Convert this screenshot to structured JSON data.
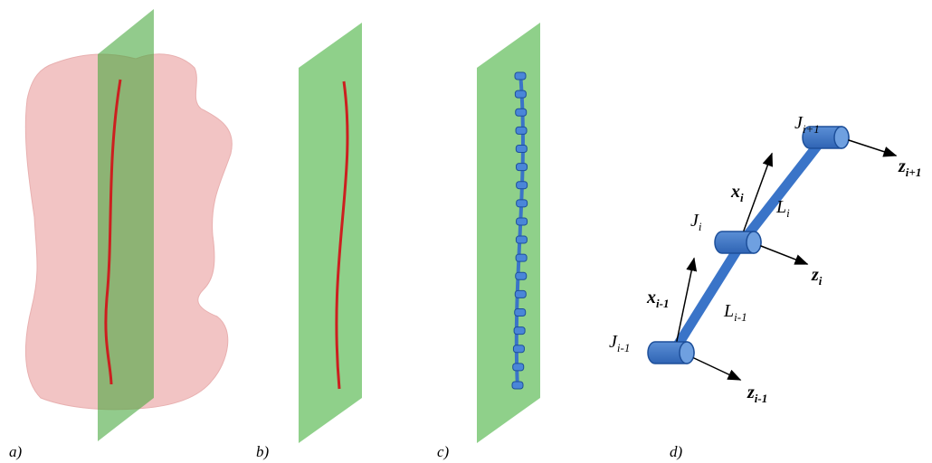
{
  "panels": {
    "a": "a)",
    "b": "b)",
    "c": "c)",
    "d": "d)"
  },
  "labels": [
    {
      "base": "J",
      "sub": "i+1"
    },
    {
      "base": "z",
      "sub": "i+1"
    },
    {
      "base": "x",
      "sub": "i"
    },
    {
      "base": "L",
      "sub": "i"
    },
    {
      "base": "J",
      "sub": "i"
    },
    {
      "base": "z",
      "sub": "i"
    },
    {
      "base": "x",
      "sub": "i-1"
    },
    {
      "base": "L",
      "sub": "i-1"
    },
    {
      "base": "J",
      "sub": "i-1"
    },
    {
      "base": "z",
      "sub": "i-1"
    }
  ]
}
